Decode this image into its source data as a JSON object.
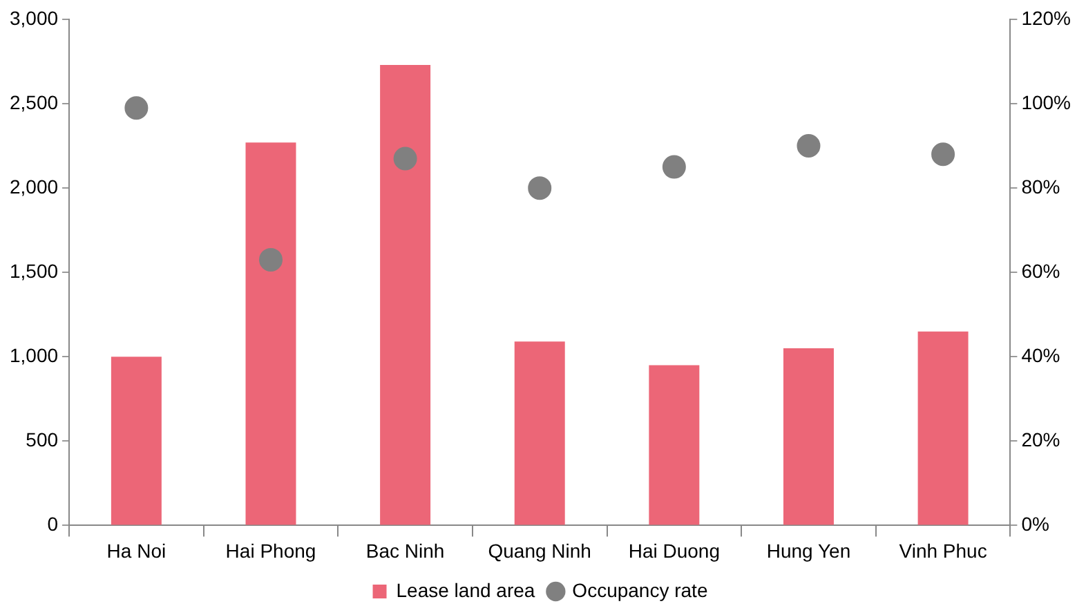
{
  "chart_data": {
    "type": "bar",
    "categories": [
      "Ha Noi",
      "Hai Phong",
      "Bac Ninh",
      "Quang Ninh",
      "Hai Duong",
      "Hung Yen",
      "Vinh Phuc"
    ],
    "series": [
      {
        "name": "Lease land area",
        "color": "#ec6677",
        "values": [
          1000,
          2270,
          2730,
          1090,
          950,
          1050,
          1150
        ]
      },
      {
        "name": "Occupancy rate",
        "type": "scatter",
        "axis": "y2",
        "color": "#808080",
        "x": [
          "Ha Noi",
          "Hai Phong",
          "Bac Ninh",
          "Quang Ninh",
          "Hai Duong",
          "Hung Yen",
          "Vinh Phuc"
        ],
        "values": [
          99,
          63,
          87,
          80,
          85,
          90,
          88
        ]
      }
    ],
    "ylim": [
      0,
      3000
    ],
    "yticks": [
      0,
      {
        "value": 500,
        "label": "500"
      },
      {
        "value": 1000,
        "label": "1,000"
      },
      {
        "value": 1500,
        "label": "1,500"
      },
      {
        "value": 2000,
        "label": "2,000"
      },
      {
        "value": 2500,
        "label": "2,500"
      },
      {
        "value": 3000,
        "label": "3,000"
      }
    ],
    "y2lim": [
      0,
      120
    ],
    "y2ticks": [
      {
        "value": 0,
        "label": "0%"
      },
      {
        "value": 20,
        "label": "20%"
      },
      {
        "value": 40,
        "label": "40%"
      },
      {
        "value": 60,
        "label": "60%"
      },
      {
        "value": 80,
        "label": "80%"
      },
      {
        "value": 100,
        "label": "100%"
      },
      {
        "value": 120,
        "label": "120%"
      }
    ],
    "grid": false,
    "legend": "bottom",
    "marker": "circle"
  }
}
